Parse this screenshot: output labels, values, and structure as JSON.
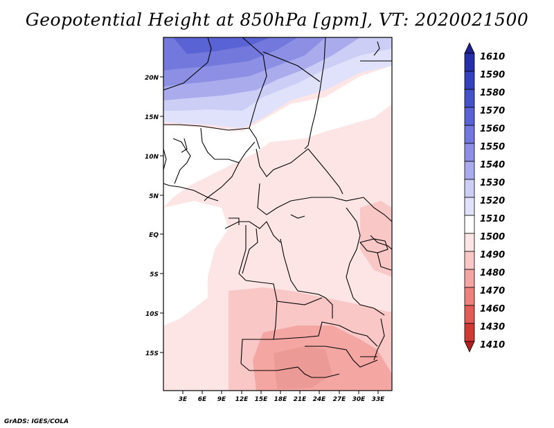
{
  "title": "Geopotential Height at 850hPa [gpm], VT: 2020021500",
  "credit": "GrADS: IGES/COLA",
  "lat_labels": [
    "20N",
    "15N",
    "10N",
    "5N",
    "EQ",
    "5S",
    "10S",
    "15S"
  ],
  "lon_labels": [
    "3E",
    "6E",
    "9E",
    "12E",
    "15E",
    "18E",
    "21E",
    "24E",
    "27E",
    "30E",
    "33E"
  ],
  "colorbar": {
    "labels": [
      "1610",
      "1590",
      "1580",
      "1570",
      "1560",
      "1550",
      "1540",
      "1530",
      "1520",
      "1510",
      "1500",
      "1490",
      "1480",
      "1470",
      "1460",
      "1430",
      "1410"
    ],
    "colors": [
      "#1c1f8e",
      "#262fa8",
      "#3441bc",
      "#4452c8",
      "#5a63d3",
      "#7378dc",
      "#8c8fe4",
      "#a9abec",
      "#cdcef6",
      "#e0e1fa",
      "#ffffff",
      "#fde5e5",
      "#f9c8c6",
      "#f3a6a2",
      "#ec827b",
      "#e05c54",
      "#cf3a33",
      "#b01f1d"
    ],
    "unit": "gpm"
  }
}
